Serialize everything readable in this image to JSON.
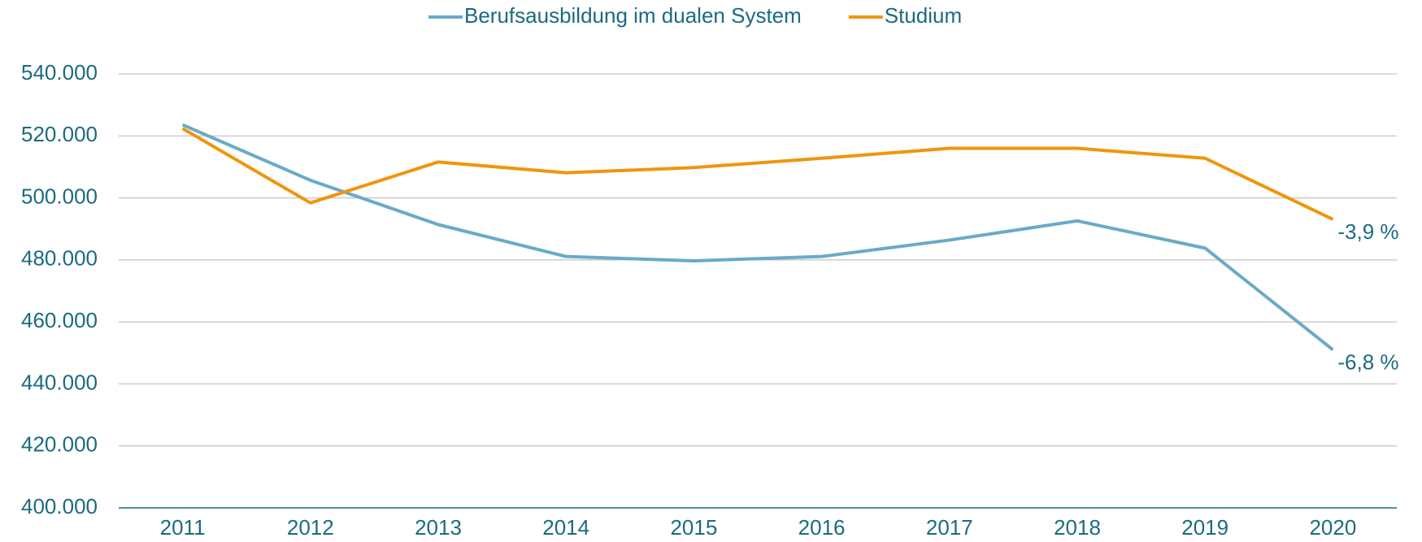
{
  "chart_data": {
    "type": "line",
    "categories": [
      "2011",
      "2012",
      "2013",
      "2014",
      "2015",
      "2016",
      "2017",
      "2018",
      "2019",
      "2020"
    ],
    "series": [
      {
        "name": "Berufsausbildung im dualen System",
        "color": "#6aaac6",
        "values": [
          523600,
          505700,
          491400,
          481100,
          479700,
          481100,
          486400,
          492600,
          483800,
          451000
        ],
        "end_label": "-6,8 %"
      },
      {
        "name": "Studium",
        "color": "#f0950e",
        "values": [
          522400,
          498400,
          511600,
          508100,
          509800,
          512800,
          516000,
          516000,
          512800,
          493100
        ],
        "end_label": "-3,9 %"
      }
    ],
    "ylim": [
      400000,
      540000
    ],
    "yticks": [
      {
        "value": 400000,
        "label": "400.000"
      },
      {
        "value": 420000,
        "label": "420.000"
      },
      {
        "value": 440000,
        "label": "440.000"
      },
      {
        "value": 460000,
        "label": "460.000"
      },
      {
        "value": 480000,
        "label": "480.000"
      },
      {
        "value": 500000,
        "label": "500.000"
      },
      {
        "value": 520000,
        "label": "520.000"
      },
      {
        "value": 540000,
        "label": "540.000"
      }
    ],
    "grid": true,
    "legend": "top"
  }
}
